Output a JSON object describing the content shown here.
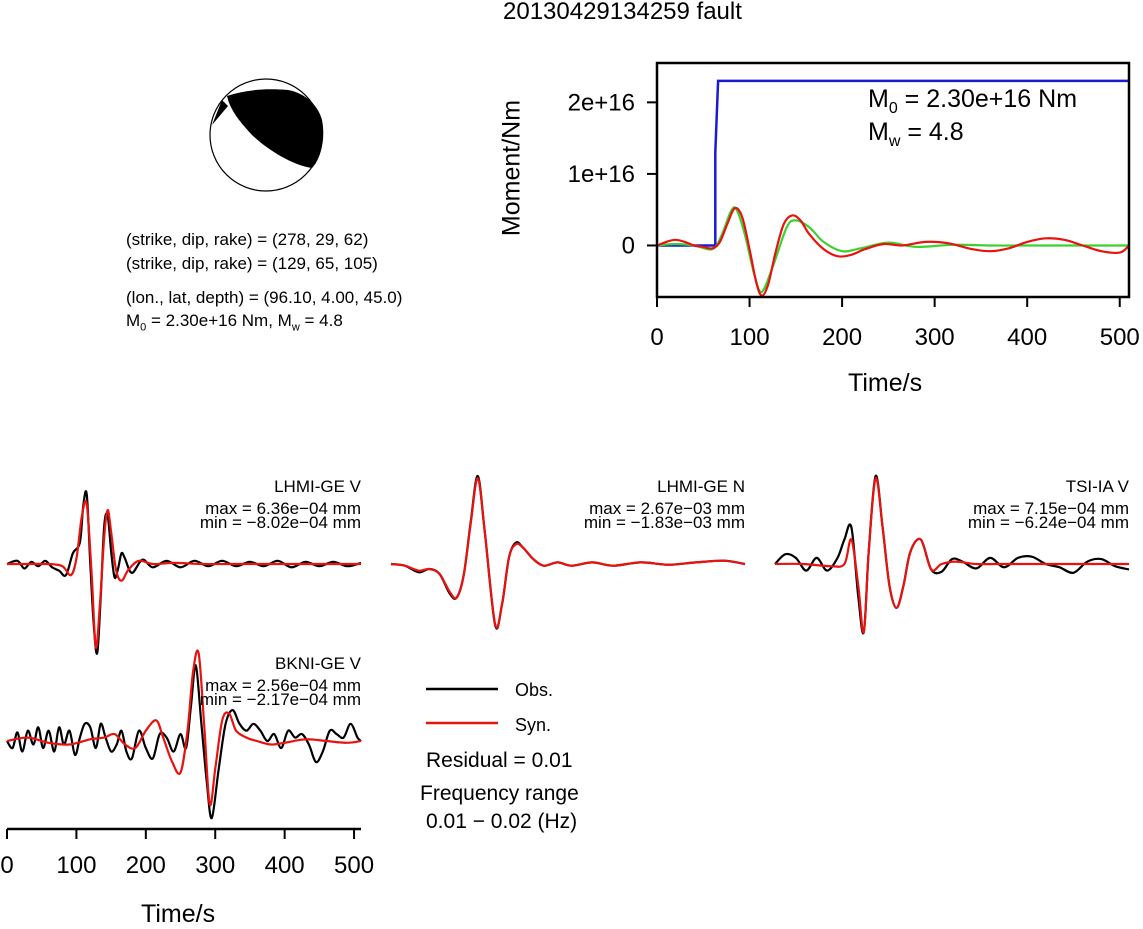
{
  "title": "20130429134259 fault",
  "beachball": {
    "nodal_plane_1": "(strike, dip, rake) = (278, 29, 62)",
    "nodal_plane_2": "(strike, dip, rake) = (129, 65, 105)",
    "location": "(lon., lat, depth) = (96.10, 4.00, 45.0)",
    "magnitude_prefix": "M",
    "magnitude_m0_sub": "0",
    "magnitude_m0_text": " = 2.30e+16 Nm, M",
    "magnitude_mw_sub": "w",
    "magnitude_mw_text": " = 4.8"
  },
  "moment_annotation": {
    "m0_label": "M",
    "m0_sub": "0",
    "m0_value": " = 2.30e+16 Nm",
    "mw_label": "M",
    "mw_sub": "w",
    "mw_value": " = 4.8"
  },
  "colors": {
    "observed": "#000000",
    "synthetic": "#e8120f",
    "cumulative_moment": "#1a1ad6",
    "green_trace": "#3ad22e"
  },
  "legend": {
    "obs_label": "Obs.",
    "syn_label": "Syn.",
    "residual": "Residual = 0.01",
    "freq_title": "Frequency range",
    "freq_value": "0.01 − 0.02 (Hz)"
  },
  "chart_data": [
    {
      "type": "line",
      "id": "moment",
      "ylabel": "Moment/Nm",
      "xlabel": "Time/s",
      "xlim": [
        0,
        510
      ],
      "ylim": [
        -7200000000000000.0,
        2.55e+16
      ],
      "xticks": [
        0,
        100,
        200,
        300,
        400,
        500
      ],
      "ytick_values": [
        0,
        1e+16,
        2e+16
      ],
      "ytick_labels": [
        "0",
        "1e+16",
        "2e+16"
      ],
      "series": [
        {
          "color": "#1a1ad6",
          "x": [
            0,
            63,
            63,
            66,
            510
          ],
          "y": [
            0,
            0,
            1.3e+16,
            2.3e+16,
            2.3e+16
          ]
        },
        {
          "color": "#3ad22e",
          "x": [
            0,
            20,
            40,
            60,
            70,
            80,
            86,
            95,
            105,
            113,
            125,
            140,
            150,
            165,
            180,
            200,
            220,
            250,
            280,
            320,
            360,
            400,
            450,
            510
          ],
          "y": [
            0,
            200000000000000.0,
            0.0,
            -500000000000000.0,
            1500000000000000.0,
            4800000000000000.0,
            5000000000000000.0,
            1500000000000000.0,
            -4000000000000000.0,
            -6500000000000000.0,
            -3000000000000000.0,
            2500000000000000.0,
            3500000000000000.0,
            2500000000000000.0,
            500000000000000.0,
            -800000000000000.0,
            -400000000000000.0,
            400000000000000.0,
            -200000000000000.0,
            100000000000000.0,
            0,
            0,
            0,
            0
          ]
        },
        {
          "color": "#e8120f",
          "x": [
            0,
            10,
            20,
            30,
            40,
            50,
            60,
            68,
            76,
            84,
            92,
            100,
            107,
            113,
            120,
            128,
            137,
            146,
            155,
            165,
            180,
            195,
            210,
            225,
            245,
            265,
            290,
            315,
            340,
            360,
            380,
            400,
            420,
            440,
            460,
            480,
            500,
            510
          ],
          "y": [
            0,
            500000000000000.0,
            800000000000000.0,
            500000000000000.0,
            0.0,
            -200000000000000.0,
            -400000000000000.0,
            500000000000000.0,
            3000000000000000.0,
            5200000000000000.0,
            4000000000000000.0,
            -500000000000000.0,
            -5000000000000000.0,
            -7000000000000000.0,
            -5500000000000000.0,
            -1000000000000000.0,
            3000000000000000.0,
            4200000000000000.0,
            3500000000000000.0,
            1500000000000000.0,
            -500000000000000.0,
            -1500000000000000.0,
            -1300000000000000.0,
            -500000000000000.0,
            200000000000000.0,
            0.0,
            500000000000000.0,
            300000000000000.0,
            -500000000000000.0,
            -800000000000000.0,
            -400000000000000.0,
            500000000000000.0,
            1000000000000000.0,
            800000000000000.0,
            0.0,
            -800000000000000.0,
            -1000000000000000.0,
            0.0
          ]
        }
      ]
    },
    {
      "type": "line",
      "id": "LHMI-GE V",
      "station": "LHMI-GE V",
      "max": "max = 6.36e−04 mm",
      "min": "min = −8.02e−04 mm",
      "xlim": [
        0,
        510
      ],
      "ylim": [
        -0.8,
        0.64
      ],
      "series": [
        {
          "name": "Obs.",
          "color": "#000000",
          "x": [
            0,
            15,
            25,
            35,
            45,
            55,
            65,
            75,
            85,
            95,
            105,
            110,
            115,
            120,
            125,
            130,
            135,
            140,
            145,
            150,
            155,
            160,
            165,
            170,
            180,
            195,
            210,
            230,
            250,
            270,
            290,
            310,
            330,
            350,
            370,
            390,
            410,
            430,
            450,
            470,
            490,
            510
          ],
          "y": [
            0,
            0.03,
            -0.04,
            0.02,
            -0.02,
            0.03,
            -0.03,
            -0.06,
            -0.1,
            0.1,
            0.2,
            0.55,
            0.64,
            0.0,
            -0.55,
            -0.8,
            -0.3,
            0.35,
            0.45,
            0.12,
            -0.12,
            -0.04,
            0.1,
            0.05,
            -0.08,
            0.04,
            -0.03,
            0.03,
            -0.03,
            0.03,
            -0.02,
            0.03,
            -0.02,
            0.02,
            -0.02,
            0.03,
            -0.03,
            0.02,
            -0.02,
            0.02,
            -0.02,
            0.01
          ]
        },
        {
          "name": "Syn.",
          "color": "#e8120f",
          "x": [
            0,
            30,
            60,
            80,
            92,
            100,
            108,
            115,
            122,
            128,
            134,
            140,
            145,
            150,
            157,
            165,
            175,
            190,
            210,
            240,
            280,
            320,
            360,
            400,
            450,
            510
          ],
          "y": [
            0,
            0.0,
            0.0,
            -0.02,
            -0.1,
            0.05,
            0.45,
            0.55,
            -0.1,
            -0.75,
            -0.35,
            0.25,
            0.5,
            0.3,
            -0.05,
            -0.15,
            -0.05,
            0.03,
            0.0,
            0.01,
            0.0,
            0.0,
            0.0,
            0.0,
            0.0,
            0.0
          ]
        }
      ]
    },
    {
      "type": "line",
      "id": "LHMI-GE N",
      "station": "LHMI-GE N",
      "max": "max = 2.67e−03 mm",
      "min": "min = −1.83e−03 mm",
      "xlim": [
        0,
        510
      ],
      "ylim": [
        -1.83,
        2.67
      ],
      "series": [
        {
          "name": "Obs.",
          "color": "#000000",
          "x": [
            0,
            20,
            40,
            55,
            70,
            85,
            95,
            105,
            115,
            125,
            135,
            150,
            160,
            170,
            180,
            190,
            205,
            220,
            240,
            260,
            290,
            320,
            360,
            400,
            440,
            480,
            510
          ],
          "y": [
            0,
            -0.05,
            -0.25,
            -0.15,
            -0.3,
            -0.9,
            -1.0,
            -0.3,
            1.3,
            2.67,
            1.0,
            -1.83,
            -1.2,
            0.2,
            0.65,
            0.5,
            0.15,
            -0.05,
            0.05,
            -0.05,
            0.05,
            -0.05,
            0.05,
            -0.02,
            0.05,
            0.1,
            0.0
          ]
        },
        {
          "name": "Syn.",
          "color": "#e8120f",
          "x": [
            0,
            20,
            40,
            55,
            70,
            85,
            95,
            105,
            115,
            125,
            135,
            150,
            160,
            170,
            180,
            190,
            205,
            220,
            240,
            260,
            290,
            320,
            360,
            400,
            440,
            480,
            510
          ],
          "y": [
            0,
            -0.05,
            -0.2,
            -0.15,
            -0.3,
            -0.85,
            -1.0,
            -0.3,
            1.25,
            2.6,
            1.0,
            -1.8,
            -1.2,
            0.2,
            0.6,
            0.5,
            0.15,
            -0.05,
            0.05,
            -0.05,
            0.05,
            -0.05,
            0.05,
            -0.02,
            0.05,
            0.1,
            0.0
          ]
        }
      ]
    },
    {
      "type": "line",
      "id": "TSI-IA V",
      "station": "TSI-IA V",
      "max": "max = 7.15e−04 mm",
      "min": "min = −6.24e−04 mm",
      "xlim": [
        0,
        510
      ],
      "ylim": [
        -0.72,
        0.72
      ],
      "series": [
        {
          "name": "Obs.",
          "color": "#000000",
          "x": [
            0,
            15,
            30,
            45,
            60,
            75,
            90,
            100,
            110,
            120,
            128,
            135,
            145,
            155,
            165,
            175,
            185,
            195,
            210,
            225,
            240,
            255,
            270,
            290,
            310,
            330,
            350,
            370,
            390,
            410,
            430,
            450,
            470,
            490,
            510
          ],
          "y": [
            0,
            0.08,
            0.05,
            -0.06,
            0.05,
            -0.06,
            0.05,
            0.2,
            0.3,
            -0.3,
            -0.62,
            0.1,
            0.72,
            0.3,
            -0.2,
            -0.4,
            -0.2,
            0.1,
            0.2,
            -0.05,
            -0.07,
            0.04,
            0.02,
            -0.04,
            0.05,
            -0.03,
            0.05,
            0.06,
            0.0,
            -0.03,
            -0.08,
            0.02,
            0.04,
            -0.02,
            -0.05
          ]
        },
        {
          "name": "Syn.",
          "color": "#e8120f",
          "x": [
            0,
            40,
            80,
            100,
            110,
            120,
            128,
            135,
            145,
            155,
            165,
            175,
            185,
            195,
            210,
            225,
            240,
            260,
            290,
            320,
            360,
            400,
            450,
            510
          ],
          "y": [
            0,
            0.0,
            -0.02,
            0.0,
            0.2,
            -0.2,
            -0.62,
            0.1,
            0.7,
            0.3,
            -0.2,
            -0.4,
            -0.2,
            0.1,
            0.2,
            -0.05,
            0.0,
            0.02,
            0.0,
            0.0,
            0.0,
            0.0,
            0.0,
            0.0
          ]
        }
      ]
    },
    {
      "type": "line",
      "id": "BKNI-GE V",
      "station": "BKNI-GE V",
      "max": "max = 2.56e−04 mm",
      "min": "min = −2.17e−04 mm",
      "xlim": [
        0,
        510
      ],
      "ylim": [
        -2.2,
        2.56
      ],
      "xlabel": "Time/s",
      "xticks": [
        0,
        100,
        200,
        300,
        400,
        500
      ],
      "series": [
        {
          "name": "Obs.",
          "color": "#000000",
          "x": [
            0,
            8,
            15,
            22,
            30,
            38,
            45,
            52,
            60,
            68,
            75,
            82,
            90,
            98,
            105,
            112,
            120,
            128,
            135,
            142,
            150,
            158,
            165,
            172,
            180,
            190,
            200,
            210,
            220,
            230,
            240,
            250,
            258,
            265,
            272,
            280,
            288,
            295,
            305,
            315,
            325,
            335,
            345,
            355,
            365,
            375,
            385,
            395,
            405,
            415,
            425,
            435,
            445,
            455,
            465,
            475,
            485,
            495,
            505,
            510
          ],
          "y": [
            0,
            -0.2,
            0.25,
            -0.3,
            0.3,
            -0.1,
            0.4,
            -0.2,
            0.3,
            -0.3,
            0.4,
            -0.1,
            0.3,
            -0.4,
            0.1,
            0.5,
            0.4,
            -0.2,
            0.5,
            0.1,
            -0.3,
            -0.1,
            0.3,
            -0.3,
            -0.5,
            0.3,
            -0.2,
            -0.5,
            0.2,
            0.1,
            -0.3,
            0.2,
            -0.2,
            1.0,
            2.2,
            0.5,
            -1.2,
            -2.2,
            -0.8,
            0.5,
            0.9,
            0.5,
            0.3,
            0.5,
            0.3,
            0.0,
            0.2,
            -0.2,
            0.3,
            0.1,
            0.2,
            -0.1,
            -0.6,
            -0.3,
            0.3,
            0.2,
            0.1,
            0.5,
            0.1,
            0.0
          ]
        },
        {
          "name": "Syn.",
          "color": "#e8120f",
          "x": [
            0,
            30,
            60,
            90,
            120,
            140,
            155,
            170,
            185,
            200,
            215,
            225,
            238,
            250,
            260,
            268,
            276,
            284,
            292,
            300,
            310,
            320,
            330,
            345,
            360,
            380,
            400,
            430,
            460,
            490,
            510
          ],
          "y": [
            0,
            0.1,
            -0.05,
            -0.1,
            0.05,
            0.1,
            0.2,
            -0.1,
            -0.2,
            0.3,
            0.6,
            0.1,
            -0.6,
            -0.9,
            0.3,
            2.0,
            2.56,
            0.5,
            -1.8,
            -0.8,
            0.6,
            0.8,
            0.3,
            0.1,
            0.0,
            -0.1,
            -0.05,
            0.05,
            0.0,
            -0.05,
            0.0
          ]
        }
      ]
    }
  ]
}
